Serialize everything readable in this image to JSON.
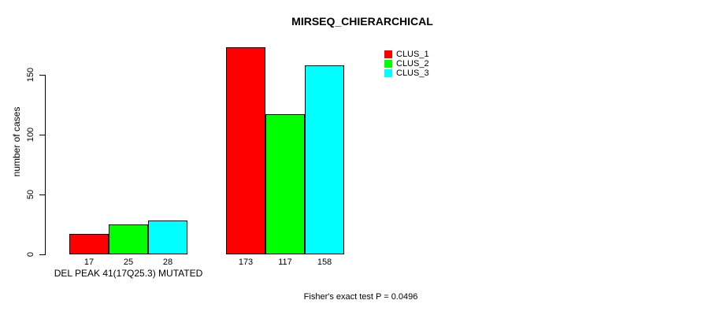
{
  "chart_data": {
    "type": "bar",
    "title": "MIRSEQ_CHIERARCHICAL",
    "ylabel": "number of cases",
    "xlabel": "DEL PEAK 41(17Q25.3) MUTATED",
    "ylim": [
      0,
      180
    ],
    "yticks": [
      0,
      50,
      100,
      150
    ],
    "grid": false,
    "legend_position": "top-right",
    "bar_border_color": "#000000",
    "groups": [
      {
        "label": "DEL PEAK 41(17Q25.3) MUTATED",
        "values": [
          17,
          25,
          28
        ]
      },
      {
        "label": "",
        "values": [
          173,
          117,
          158
        ]
      }
    ],
    "series": [
      {
        "name": "CLUS_1",
        "color": "#FF0000"
      },
      {
        "name": "CLUS_2",
        "color": "#00FF00"
      },
      {
        "name": "CLUS_3",
        "color": "#00FFFF"
      }
    ],
    "bar_value_labels_shown": true,
    "annotation": "Fisher's exact test P = 0.0496"
  }
}
